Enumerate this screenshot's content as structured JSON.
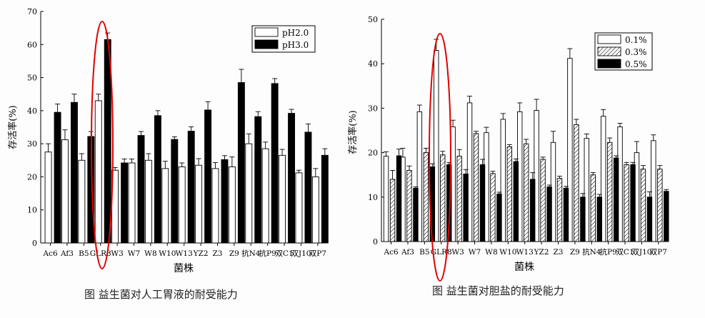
{
  "captions": {
    "left": "图 益生菌对人工胃液的耐受能力",
    "right": "图  益生菌对胆盐的耐受能力"
  },
  "chart_data": [
    {
      "type": "bar",
      "xlabel": "菌株",
      "ylabel": "存活率(%)",
      "ylim": [
        0,
        70
      ],
      "yticks": [
        0,
        10,
        20,
        30,
        40,
        50,
        60,
        70
      ],
      "legend_position": "top-right",
      "categories": [
        "Ac6",
        "Af3",
        "B5",
        "GLR8",
        "W3",
        "W7",
        "W8",
        "W10",
        "W13",
        "YZ2",
        "Z3",
        "Z9",
        "抗N4",
        "抗P9",
        "双C1",
        "双J10",
        "双P7"
      ],
      "highlighted_category": "GLR8",
      "series": [
        {
          "name": "pH2.0",
          "fill": "#ffffff",
          "values": [
            27.5,
            31.2,
            25.0,
            43.0,
            22.0,
            24.2,
            25.0,
            22.5,
            23.0,
            23.5,
            22.5,
            23.0,
            30.0,
            28.5,
            26.5,
            21.2,
            20.0
          ],
          "errors": [
            2.5,
            3.0,
            2.0,
            2.0,
            0.8,
            1.2,
            2.0,
            2.2,
            1.2,
            2.0,
            1.8,
            3.0,
            3.0,
            2.0,
            1.8,
            0.8,
            2.5
          ]
        },
        {
          "name": "pH3.0",
          "fill": "#000000",
          "values": [
            39.5,
            42.5,
            32.2,
            61.5,
            24.2,
            32.5,
            38.5,
            31.3,
            33.8,
            40.2,
            25.2,
            48.5,
            38.2,
            48.2,
            39.2,
            33.5,
            26.5
          ],
          "errors": [
            2.5,
            2.5,
            1.5,
            2.0,
            1.2,
            1.2,
            1.5,
            0.8,
            1.3,
            2.5,
            1.2,
            4.0,
            1.5,
            1.5,
            1.2,
            2.5,
            2.0
          ]
        }
      ]
    },
    {
      "type": "bar",
      "xlabel": "菌株",
      "ylabel": "存活率(%)",
      "ylim": [
        0,
        50
      ],
      "yticks": [
        0,
        10,
        20,
        30,
        40,
        50
      ],
      "legend_position": "top-right",
      "categories": [
        "Ac6",
        "Af3",
        "B5",
        "GLR8",
        "W3",
        "W7",
        "W8",
        "W10",
        "W13",
        "YZ2",
        "Z3",
        "Z9",
        "抗N4",
        "抗P9",
        "双C1",
        "双J10",
        "双P7"
      ],
      "highlighted_category": "GLR8",
      "series": [
        {
          "name": "0.1%",
          "fill": "#ffffff",
          "values": [
            19.2,
            19.0,
            29.2,
            43.0,
            25.8,
            31.2,
            24.5,
            27.5,
            29.2,
            29.5,
            22.3,
            41.2,
            23.2,
            28.2,
            25.8,
            20.0,
            22.7
          ],
          "errors": [
            1.0,
            2.0,
            1.5,
            2.5,
            1.5,
            1.5,
            1.2,
            1.3,
            2.0,
            2.5,
            2.5,
            2.2,
            1.0,
            1.5,
            0.8,
            2.5,
            1.3
          ]
        },
        {
          "name": "0.3%",
          "fill": "hatch",
          "values": [
            14.0,
            16.0,
            20.0,
            19.5,
            19.2,
            24.3,
            15.3,
            21.3,
            22.0,
            18.5,
            14.2,
            26.3,
            15.0,
            22.3,
            17.3,
            16.3,
            16.3
          ],
          "errors": [
            2.0,
            1.0,
            1.0,
            0.8,
            1.5,
            0.5,
            0.5,
            0.5,
            1.0,
            0.5,
            0.5,
            1.2,
            0.5,
            1.0,
            0.5,
            0.8,
            0.8
          ]
        },
        {
          "name": "0.5%",
          "fill": "#000000",
          "values": [
            19.3,
            12.0,
            16.8,
            17.3,
            15.2,
            17.3,
            10.7,
            18.0,
            14.0,
            12.3,
            12.0,
            10.0,
            10.0,
            18.8,
            17.3,
            10.0,
            11.3
          ],
          "errors": [
            1.5,
            0.3,
            0.7,
            0.5,
            1.0,
            1.2,
            0.4,
            0.6,
            1.5,
            0.4,
            0.4,
            0.8,
            0.6,
            0.5,
            0.5,
            1.2,
            0.4
          ]
        }
      ]
    }
  ]
}
